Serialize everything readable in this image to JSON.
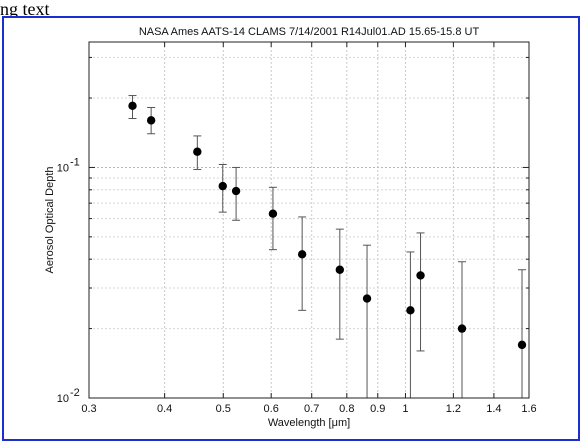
{
  "caption": "ng text",
  "chart_data": {
    "type": "scatter",
    "title": "NASA Ames AATS-14  CLAMS  7/14/2001 R14Jul01.AD 15.65-15.8 UT",
    "xlabel": "Wavelength [μm]",
    "ylabel": "Aerosol Optical Depth",
    "xscale": "log",
    "yscale": "log",
    "xlim": [
      0.3,
      1.6
    ],
    "ylim": [
      0.01,
      0.35
    ],
    "grid": true,
    "xticks": [
      0.3,
      0.4,
      0.5,
      0.6,
      0.7,
      0.8,
      0.9,
      1,
      1.2,
      1.4,
      1.6
    ],
    "xtick_labels": [
      "0.3",
      "0.4",
      "0.5",
      "0.6",
      "0.7",
      "0.8",
      "0.9",
      "1",
      "1.2",
      "1.4",
      "1.6"
    ],
    "y_major_ticks": [
      0.01,
      0.1
    ],
    "y_major_labels": [
      [
        "10",
        "-2"
      ],
      [
        "10",
        "-1"
      ]
    ],
    "series": [
      {
        "points": [
          {
            "x": 0.354,
            "y": 0.185,
            "yerr_low": 0.163,
            "yerr_high": 0.205
          },
          {
            "x": 0.38,
            "y": 0.16,
            "yerr_low": 0.14,
            "yerr_high": 0.182
          },
          {
            "x": 0.453,
            "y": 0.117,
            "yerr_low": 0.098,
            "yerr_high": 0.137
          },
          {
            "x": 0.499,
            "y": 0.083,
            "yerr_low": 0.064,
            "yerr_high": 0.103
          },
          {
            "x": 0.525,
            "y": 0.079,
            "yerr_low": 0.059,
            "yerr_high": 0.1
          },
          {
            "x": 0.604,
            "y": 0.063,
            "yerr_low": 0.044,
            "yerr_high": 0.082
          },
          {
            "x": 0.675,
            "y": 0.042,
            "yerr_low": 0.024,
            "yerr_high": 0.061
          },
          {
            "x": 0.779,
            "y": 0.036,
            "yerr_low": 0.018,
            "yerr_high": 0.054
          },
          {
            "x": 0.864,
            "y": 0.027,
            "yerr_low": 0.009,
            "yerr_high": 0.046
          },
          {
            "x": 1.019,
            "y": 0.024,
            "yerr_low": 0.005,
            "yerr_high": 0.043
          },
          {
            "x": 1.059,
            "y": 0.034,
            "yerr_low": 0.016,
            "yerr_high": 0.052
          },
          {
            "x": 1.24,
            "y": 0.02,
            "yerr_low": 0.002,
            "yerr_high": 0.039
          },
          {
            "x": 1.558,
            "y": 0.017,
            "yerr_low": 0.001,
            "yerr_high": 0.036
          }
        ]
      }
    ]
  }
}
